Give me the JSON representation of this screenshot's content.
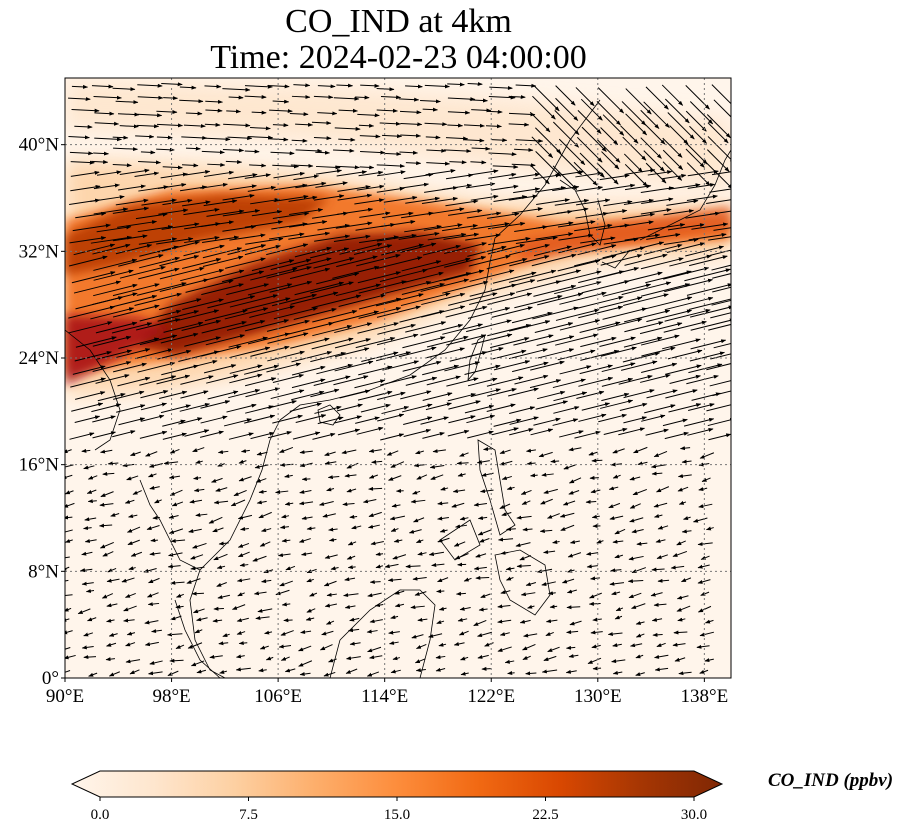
{
  "title": {
    "line1": "CO_IND at 4km",
    "line2": "Time: 2024-02-23 04:00:00"
  },
  "map": {
    "extent": {
      "lon": [
        90,
        140
      ],
      "lat": [
        0,
        45
      ]
    },
    "x_ticks": [
      {
        "lon": 90,
        "label": "90°E"
      },
      {
        "lon": 98,
        "label": "98°E"
      },
      {
        "lon": 106,
        "label": "106°E"
      },
      {
        "lon": 114,
        "label": "114°E"
      },
      {
        "lon": 122,
        "label": "122°E"
      },
      {
        "lon": 130,
        "label": "130°E"
      },
      {
        "lon": 138,
        "label": "138°E"
      }
    ],
    "y_ticks": [
      {
        "lat": 0,
        "label": "0°"
      },
      {
        "lat": 8,
        "label": "8°N"
      },
      {
        "lat": 16,
        "label": "16°N"
      },
      {
        "lat": 24,
        "label": "24°N"
      },
      {
        "lat": 32,
        "label": "32°N"
      },
      {
        "lat": 40,
        "label": "40°N"
      }
    ],
    "gridlines": true,
    "field": "CO concentration shading with wind vectors"
  },
  "colorbar": {
    "label": "CO_IND (ppbv)",
    "min": 0,
    "max": 30,
    "extend": "both",
    "ticks": [
      "0.0",
      "7.5",
      "15.0",
      "22.5",
      "30.0"
    ],
    "colors": [
      "#fff5eb",
      "#fee6ce",
      "#fdd0a2",
      "#fdae6b",
      "#fd8d3c",
      "#f16913",
      "#d94801",
      "#a63603",
      "#7f2704"
    ]
  }
}
